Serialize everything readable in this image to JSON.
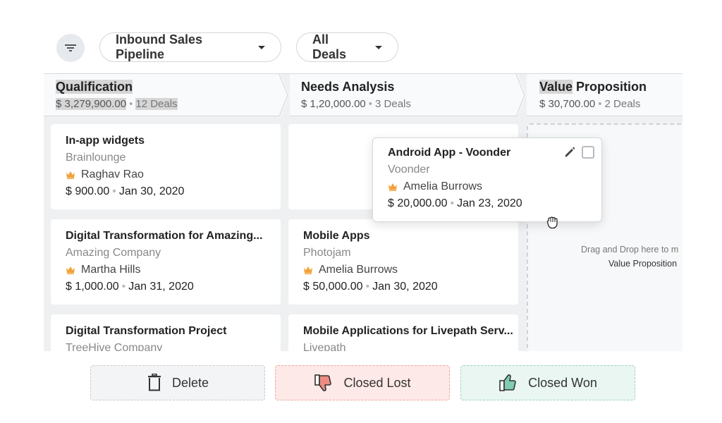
{
  "toolbar": {
    "filter_icon": "filter-icon",
    "pipeline_label": "Inbound Sales Pipeline",
    "view_label": "All Deals"
  },
  "stages": [
    {
      "name_hl": "Qualification",
      "name_rest": "",
      "amount": "$ 3,279,900.00",
      "count": "12 Deals"
    },
    {
      "name_hl": "",
      "name_rest": "Needs Analysis",
      "amount": "$ 1,20,000.00",
      "count": "3 Deals"
    },
    {
      "name_hl": "Value",
      "name_rest": " Proposition",
      "amount": "$ 30,700.00",
      "count": "2 Deals"
    }
  ],
  "columns": {
    "qualification": [
      {
        "title": "In-app widgets",
        "company": "Brainlounge",
        "owner": "Raghav Rao",
        "amount": "$ 900.00",
        "date": "Jan 30, 2020"
      },
      {
        "title": "Digital Transformation for Amazing...",
        "company": "Amazing Company",
        "owner": "Martha Hills",
        "amount": "$ 1,000.00",
        "date": "Jan 31, 2020"
      },
      {
        "title": "Digital Transformation Project",
        "company": "TreeHive Company"
      }
    ],
    "needs_analysis": [
      {
        "title": "Mobile Apps",
        "company": "Photojam",
        "owner": "Amelia Burrows",
        "amount": "$ 50,000.00",
        "date": "Jan 30, 2020"
      },
      {
        "title": "Mobile Applications for Livepath Serv...",
        "company": "Livepath"
      }
    ]
  },
  "dragged_card": {
    "title": "Android App - Voonder",
    "company": "Voonder",
    "owner": "Amelia Burrows",
    "amount": "$ 20,000.00",
    "date": "Jan 23, 2020"
  },
  "drop_zone": {
    "text": "Drag and Drop here to m",
    "stage": "Value Proposition"
  },
  "actions": {
    "delete": "Delete",
    "closed_lost": "Closed Lost",
    "closed_won": "Closed Won"
  },
  "colors": {
    "owner_crown": "#f0a33a",
    "lost_bg": "#fde9e7",
    "won_bg": "#e9f6f2"
  }
}
